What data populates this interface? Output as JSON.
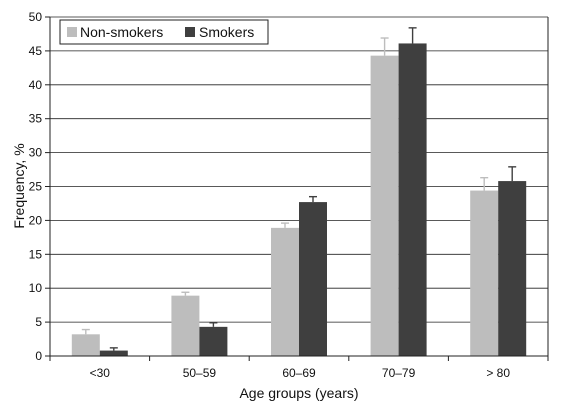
{
  "chart_data": {
    "type": "bar",
    "title": "",
    "xlabel": "Age groups (years)",
    "ylabel": "Frequency, %",
    "ylim": [
      0,
      50
    ],
    "yticks": [
      0,
      5,
      10,
      15,
      20,
      25,
      30,
      35,
      40,
      45,
      50
    ],
    "categories": [
      "<30",
      "50–59",
      "60–69",
      "70–79",
      "> 80"
    ],
    "series": [
      {
        "name": "Non-smokers",
        "color": "#bdbdbd",
        "values": [
          3.2,
          8.9,
          18.9,
          44.3,
          24.4
        ],
        "errors": [
          0.7,
          0.5,
          0.7,
          2.6,
          1.9
        ]
      },
      {
        "name": "Smokers",
        "color": "#3f3f3f",
        "values": [
          0.8,
          4.3,
          22.7,
          46.1,
          25.8
        ],
        "errors": [
          0.4,
          0.6,
          0.8,
          2.3,
          2.1
        ]
      }
    ],
    "grid": {
      "solid_y": [
        5,
        10,
        15,
        20,
        25,
        30,
        35,
        40,
        45,
        50
      ],
      "note": "gridlines are drawn behind bars; in the gaps between categories they appear dashed"
    },
    "legend": {
      "placement": "top-left",
      "boxed": true
    }
  }
}
